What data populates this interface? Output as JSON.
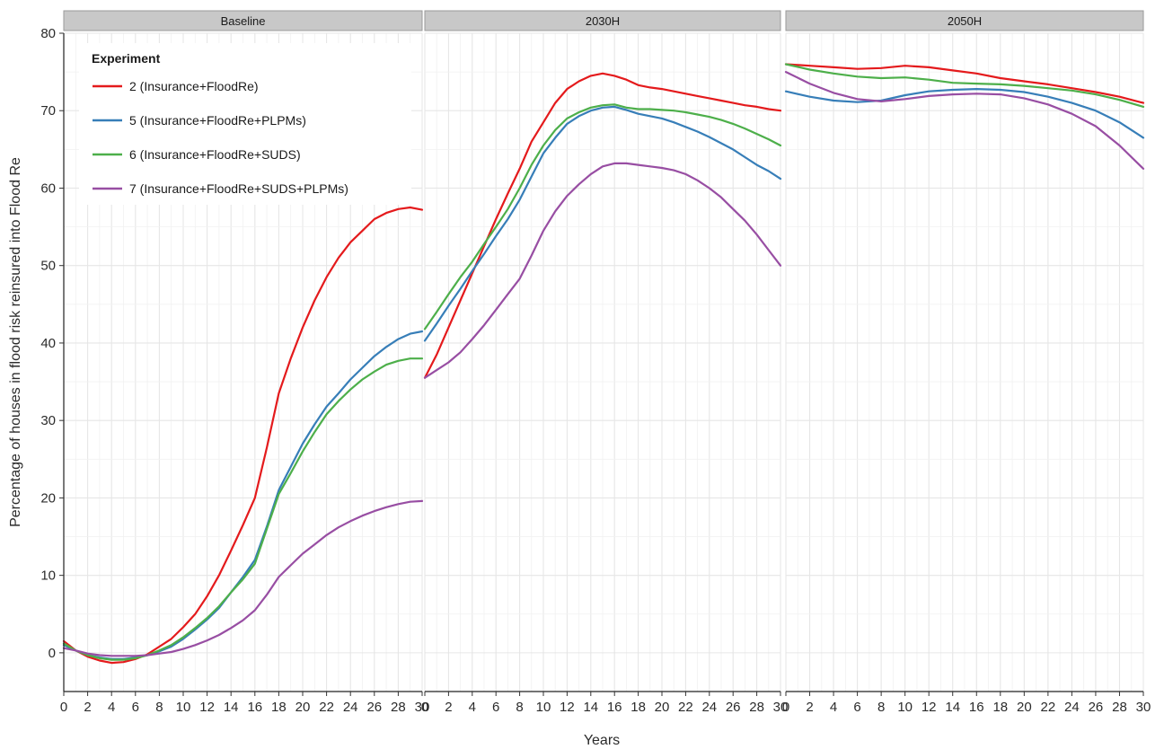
{
  "chart_data": {
    "type": "line",
    "facet_variable": "",
    "panels": [
      {
        "label": "Baseline",
        "series": [
          {
            "name": "2 (Insurance+FloodRe)",
            "x": [
              0,
              1,
              2,
              3,
              4,
              5,
              6,
              7,
              8,
              9,
              10,
              11,
              12,
              13,
              14,
              15,
              16,
              17,
              18,
              19,
              20,
              21,
              22,
              23,
              24,
              25,
              26,
              27,
              28,
              29,
              30
            ],
            "y": [
              1.5,
              0.3,
              -0.5,
              -1.0,
              -1.3,
              -1.2,
              -0.8,
              -0.2,
              0.8,
              1.8,
              3.3,
              5.0,
              7.3,
              10.0,
              13.2,
              16.5,
              20.0,
              26.5,
              33.5,
              38.0,
              42.0,
              45.5,
              48.5,
              51.0,
              53.0,
              54.5,
              56.0,
              56.8,
              57.3,
              57.5,
              57.2
            ]
          },
          {
            "name": "5 (Insurance+FloodRe+PLPMs)",
            "x": [
              0,
              1,
              2,
              3,
              4,
              5,
              6,
              7,
              8,
              9,
              10,
              11,
              12,
              13,
              14,
              15,
              16,
              17,
              18,
              19,
              20,
              21,
              22,
              23,
              24,
              25,
              26,
              27,
              28,
              29,
              30
            ],
            "y": [
              1.0,
              0.3,
              -0.3,
              -0.6,
              -0.8,
              -0.8,
              -0.6,
              -0.3,
              0.2,
              0.8,
              1.8,
              3.0,
              4.3,
              5.8,
              7.8,
              9.8,
              12.0,
              16.3,
              21.0,
              24.0,
              27.0,
              29.5,
              31.8,
              33.5,
              35.3,
              36.8,
              38.3,
              39.5,
              40.5,
              41.2,
              41.5
            ]
          },
          {
            "name": "6 (Insurance+FloodRe+SUDS)",
            "x": [
              0,
              1,
              2,
              3,
              4,
              5,
              6,
              7,
              8,
              9,
              10,
              11,
              12,
              13,
              14,
              15,
              16,
              17,
              18,
              19,
              20,
              21,
              22,
              23,
              24,
              25,
              26,
              27,
              28,
              29,
              30
            ],
            "y": [
              1.2,
              0.3,
              -0.3,
              -0.7,
              -0.9,
              -0.9,
              -0.7,
              -0.3,
              0.3,
              1.0,
              2.0,
              3.2,
              4.5,
              6.0,
              7.8,
              9.5,
              11.5,
              16.0,
              20.5,
              23.2,
              26.0,
              28.5,
              30.8,
              32.5,
              34.0,
              35.3,
              36.3,
              37.2,
              37.7,
              38.0,
              38.0
            ]
          },
          {
            "name": "7 (Insurance+FloodRe+SUDS+PLPMs)",
            "x": [
              0,
              1,
              2,
              3,
              4,
              5,
              6,
              7,
              8,
              9,
              10,
              11,
              12,
              13,
              14,
              15,
              16,
              17,
              18,
              19,
              20,
              21,
              22,
              23,
              24,
              25,
              26,
              27,
              28,
              29,
              30
            ],
            "y": [
              0.6,
              0.3,
              -0.1,
              -0.3,
              -0.4,
              -0.4,
              -0.4,
              -0.3,
              -0.1,
              0.1,
              0.5,
              1.0,
              1.6,
              2.3,
              3.2,
              4.2,
              5.5,
              7.5,
              9.8,
              11.3,
              12.8,
              14.0,
              15.2,
              16.2,
              17.0,
              17.7,
              18.3,
              18.8,
              19.2,
              19.5,
              19.6
            ]
          }
        ]
      },
      {
        "label": "2030H",
        "series": [
          {
            "name": "2 (Insurance+FloodRe)",
            "x": [
              0,
              1,
              2,
              3,
              4,
              5,
              6,
              7,
              8,
              9,
              10,
              11,
              12,
              13,
              14,
              15,
              16,
              17,
              18,
              19,
              20,
              21,
              22,
              23,
              24,
              25,
              26,
              27,
              28,
              29,
              30
            ],
            "y": [
              35.5,
              38.5,
              42.0,
              45.5,
              49.0,
              52.5,
              56.0,
              59.3,
              62.5,
              66.0,
              68.5,
              71.0,
              72.8,
              73.8,
              74.5,
              74.8,
              74.5,
              74.0,
              73.3,
              73.0,
              72.8,
              72.5,
              72.2,
              71.9,
              71.6,
              71.3,
              71.0,
              70.7,
              70.5,
              70.2,
              70.0
            ]
          },
          {
            "name": "5 (Insurance+FloodRe+PLPMs)",
            "x": [
              0,
              1,
              2,
              3,
              4,
              5,
              6,
              7,
              8,
              9,
              10,
              11,
              12,
              13,
              14,
              15,
              16,
              17,
              18,
              19,
              20,
              21,
              22,
              23,
              24,
              25,
              26,
              27,
              28,
              29,
              30
            ],
            "y": [
              40.3,
              42.5,
              44.8,
              47.0,
              49.3,
              51.5,
              53.8,
              56.0,
              58.5,
              61.5,
              64.5,
              66.5,
              68.3,
              69.3,
              70.0,
              70.4,
              70.5,
              70.1,
              69.6,
              69.3,
              69.0,
              68.5,
              67.9,
              67.3,
              66.6,
              65.8,
              65.0,
              64.0,
              63.0,
              62.2,
              61.2
            ]
          },
          {
            "name": "6 (Insurance+FloodRe+SUDS)",
            "x": [
              0,
              1,
              2,
              3,
              4,
              5,
              6,
              7,
              8,
              9,
              10,
              11,
              12,
              13,
              14,
              15,
              16,
              17,
              18,
              19,
              20,
              21,
              22,
              23,
              24,
              25,
              26,
              27,
              28,
              29,
              30
            ],
            "y": [
              41.8,
              44.0,
              46.3,
              48.5,
              50.5,
              52.8,
              55.0,
              57.3,
              60.0,
              63.0,
              65.5,
              67.5,
              69.0,
              69.8,
              70.4,
              70.7,
              70.8,
              70.4,
              70.2,
              70.2,
              70.1,
              70.0,
              69.8,
              69.5,
              69.2,
              68.8,
              68.3,
              67.7,
              67.0,
              66.3,
              65.5
            ]
          },
          {
            "name": "7 (Insurance+FloodRe+SUDS+PLPMs)",
            "x": [
              0,
              1,
              2,
              3,
              4,
              5,
              6,
              7,
              8,
              9,
              10,
              11,
              12,
              13,
              14,
              15,
              16,
              17,
              18,
              19,
              20,
              21,
              22,
              23,
              24,
              25,
              26,
              27,
              28,
              29,
              30
            ],
            "y": [
              35.5,
              36.5,
              37.5,
              38.8,
              40.5,
              42.3,
              44.3,
              46.3,
              48.3,
              51.3,
              54.5,
              57.0,
              59.0,
              60.5,
              61.8,
              62.8,
              63.2,
              63.2,
              63.0,
              62.8,
              62.6,
              62.3,
              61.8,
              61.0,
              60.0,
              58.8,
              57.3,
              55.8,
              54.0,
              52.0,
              50.0
            ]
          }
        ]
      },
      {
        "label": "2050H",
        "series": [
          {
            "name": "2 (Insurance+FloodRe)",
            "x": [
              0,
              2,
              4,
              6,
              8,
              10,
              12,
              14,
              16,
              18,
              20,
              22,
              24,
              26,
              28,
              30
            ],
            "y": [
              76.0,
              75.8,
              75.6,
              75.4,
              75.5,
              75.8,
              75.6,
              75.2,
              74.8,
              74.2,
              73.8,
              73.4,
              72.9,
              72.4,
              71.8,
              71.0
            ]
          },
          {
            "name": "5 (Insurance+FloodRe+PLPMs)",
            "x": [
              0,
              2,
              4,
              6,
              8,
              10,
              12,
              14,
              16,
              18,
              20,
              22,
              24,
              26,
              28,
              30
            ],
            "y": [
              72.5,
              71.8,
              71.3,
              71.1,
              71.3,
              72.0,
              72.5,
              72.7,
              72.8,
              72.7,
              72.4,
              71.8,
              71.0,
              70.0,
              68.5,
              66.5
            ]
          },
          {
            "name": "6 (Insurance+FloodRe+SUDS)",
            "x": [
              0,
              2,
              4,
              6,
              8,
              10,
              12,
              14,
              16,
              18,
              20,
              22,
              24,
              26,
              28,
              30
            ],
            "y": [
              76.0,
              75.3,
              74.8,
              74.4,
              74.2,
              74.3,
              74.0,
              73.6,
              73.5,
              73.4,
              73.2,
              72.9,
              72.6,
              72.1,
              71.4,
              70.5
            ]
          },
          {
            "name": "7 (Insurance+FloodRe+SUDS+PLPMs)",
            "x": [
              0,
              2,
              4,
              6,
              8,
              10,
              12,
              14,
              16,
              18,
              20,
              22,
              24,
              26,
              28,
              30
            ],
            "y": [
              75.0,
              73.5,
              72.3,
              71.5,
              71.2,
              71.5,
              71.9,
              72.1,
              72.2,
              72.1,
              71.6,
              70.8,
              69.6,
              68.0,
              65.5,
              62.5
            ]
          }
        ]
      }
    ],
    "series_colors": {
      "2 (Insurance+FloodRe)": "#e41a1c",
      "5 (Insurance+FloodRe+PLPMs)": "#377eb8",
      "6 (Insurance+FloodRe+SUDS)": "#4daf4a",
      "7 (Insurance+FloodRe+SUDS+PLPMs)": "#984ea3"
    },
    "legend": {
      "title": "Experiment",
      "placement": "top-left",
      "entries": [
        "2 (Insurance+FloodRe)",
        "5 (Insurance+FloodRe+PLPMs)",
        "6 (Insurance+FloodRe+SUDS)",
        "7 (Insurance+FloodRe+SUDS+PLPMs)"
      ]
    },
    "xlabel": "Years",
    "ylabel": "Percentage of houses in flood risk reinsured into Flood Re",
    "xlim": [
      0,
      30
    ],
    "ylim": [
      -5,
      80
    ],
    "xticks": [
      0,
      2,
      4,
      6,
      8,
      10,
      12,
      14,
      16,
      18,
      20,
      22,
      24,
      26,
      28,
      30
    ],
    "yticks": [
      0,
      10,
      20,
      30,
      40,
      50,
      60,
      70,
      80
    ],
    "grid": true,
    "strip_color": "#c8c8c8"
  }
}
